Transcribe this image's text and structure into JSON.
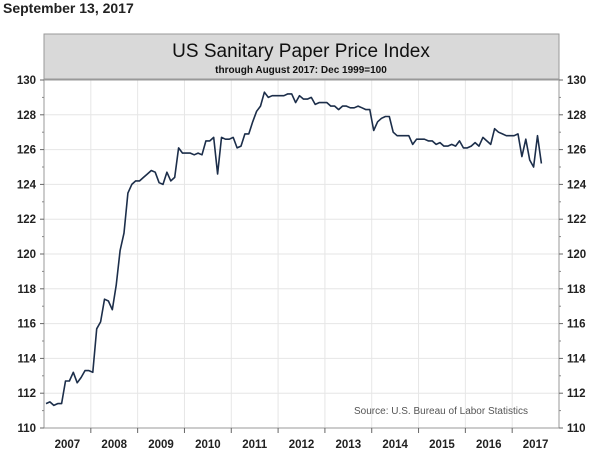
{
  "date": "September 13, 2017",
  "chart_data": {
    "type": "line",
    "title": "US Sanitary Paper Price Index",
    "subtitle": "through August 2017: Dec 1999=100",
    "source": "Source: U.S. Bureau of Labor Statistics",
    "xlabel": "",
    "ylabel": "",
    "ylim": [
      110,
      130
    ],
    "yticks": [
      "110",
      "112",
      "114",
      "116",
      "118",
      "120",
      "122",
      "124",
      "126",
      "128",
      "130"
    ],
    "xticks": [
      "2007",
      "2008",
      "2009",
      "2010",
      "2011",
      "2012",
      "2013",
      "2014",
      "2015",
      "2016",
      "2017"
    ],
    "x_start": "2007-01",
    "frequency": "monthly",
    "grid": true,
    "colors": {
      "line": "#1c2e4a",
      "title_band": "#d9d9d9",
      "grid": "#e6e6e6"
    },
    "series": [
      {
        "name": "US Sanitary Paper Price Index",
        "values": [
          111.4,
          111.5,
          111.3,
          111.4,
          111.4,
          112.7,
          112.7,
          113.2,
          112.6,
          112.9,
          113.3,
          113.3,
          113.2,
          115.7,
          116.1,
          117.4,
          117.3,
          116.8,
          118.2,
          120.2,
          121.2,
          123.5,
          124.0,
          124.2,
          124.2,
          124.4,
          124.6,
          124.8,
          124.7,
          124.1,
          124.0,
          124.7,
          124.2,
          124.4,
          126.1,
          125.8,
          125.8,
          125.8,
          125.7,
          125.8,
          125.7,
          126.5,
          126.5,
          126.7,
          124.6,
          126.7,
          126.6,
          126.6,
          126.7,
          126.1,
          126.2,
          126.9,
          126.9,
          127.6,
          128.2,
          128.5,
          129.3,
          129.0,
          129.1,
          129.1,
          129.1,
          129.1,
          129.2,
          129.2,
          128.7,
          129.1,
          128.9,
          128.9,
          129.0,
          128.6,
          128.7,
          128.7,
          128.7,
          128.5,
          128.5,
          128.3,
          128.5,
          128.5,
          128.4,
          128.4,
          128.5,
          128.4,
          128.3,
          128.3,
          127.1,
          127.6,
          127.8,
          127.9,
          127.9,
          127.0,
          126.8,
          126.8,
          126.8,
          126.8,
          126.3,
          126.6,
          126.6,
          126.6,
          126.5,
          126.5,
          126.3,
          126.4,
          126.2,
          126.2,
          126.3,
          126.2,
          126.5,
          126.1,
          126.1,
          126.2,
          126.4,
          126.2,
          126.7,
          126.5,
          126.3,
          127.2,
          127.0,
          126.9,
          126.8,
          126.8,
          126.8,
          126.9,
          125.6,
          126.6,
          125.4,
          125.0,
          126.8,
          125.2
        ]
      }
    ]
  }
}
